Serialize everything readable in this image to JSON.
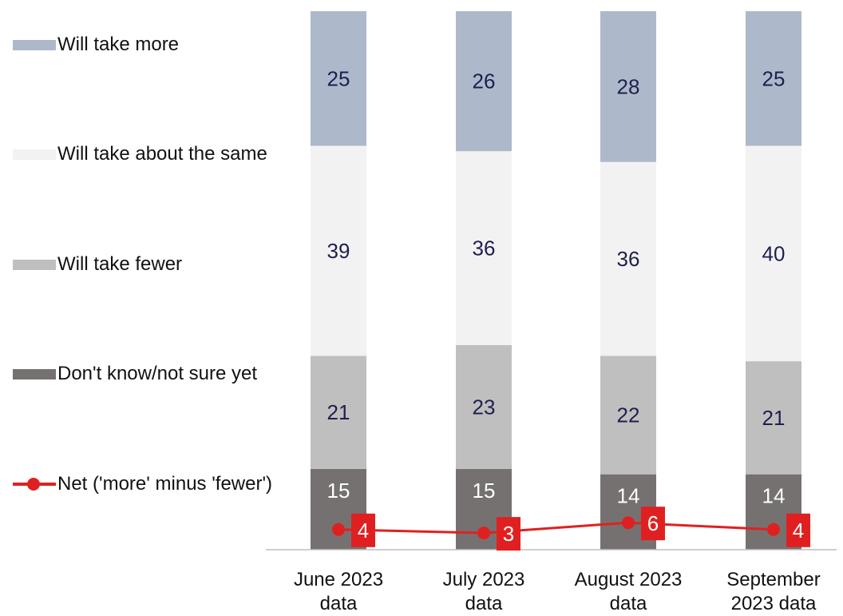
{
  "chart_data": {
    "type": "bar",
    "stacked": true,
    "categories": [
      "June 2023\ndata",
      "July 2023\ndata",
      "August 2023\ndata",
      "September\n2023 data"
    ],
    "series": [
      {
        "name": "Don't know/not sure yet",
        "values": [
          15,
          15,
          14,
          14
        ],
        "color": "#767171"
      },
      {
        "name": "Will take fewer",
        "values": [
          21,
          23,
          22,
          21
        ],
        "color": "#bfbfbf"
      },
      {
        "name": "Will take about the same",
        "values": [
          39,
          36,
          36,
          40
        ],
        "color": "#f2f2f2"
      },
      {
        "name": "Will take more",
        "values": [
          25,
          26,
          28,
          25
        ],
        "color": "#adb9ca"
      }
    ],
    "line_series": {
      "name": "Net ('more' minus 'fewer')",
      "values": [
        4,
        3,
        6,
        4
      ],
      "color": "#e02020"
    },
    "ylim": [
      0,
      100
    ],
    "grid": false,
    "legend_position": "left",
    "label_color": "#1f1f4f"
  }
}
